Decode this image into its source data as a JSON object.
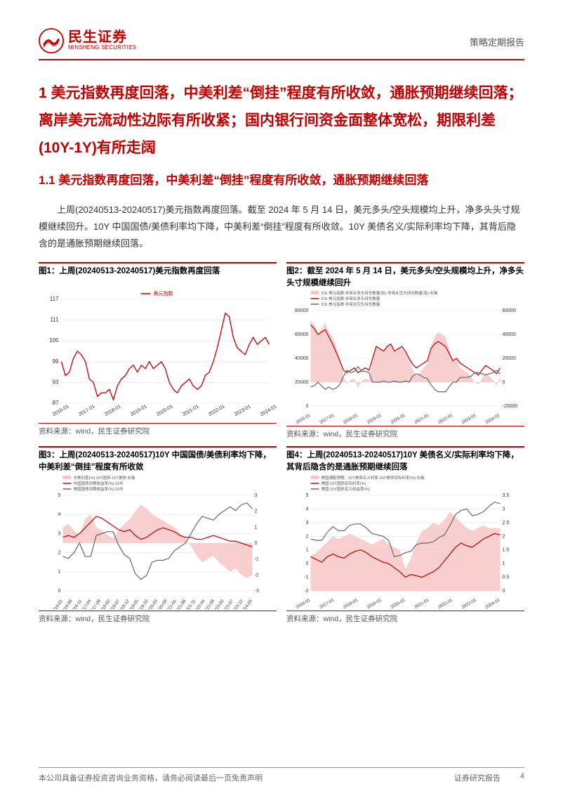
{
  "header": {
    "logo_cn": "民生证券",
    "logo_en": "MINSHENG SECURITIES",
    "report_type": "策略定期报告"
  },
  "heading1": "1 美元指数再度回落，中美利差“倒挂”程度有所收敛，通胀预期继续回落；离岸美元流动性边际有所收紧；国内银行间资金面整体宽松，期限利差(10Y-1Y)有所走阔",
  "heading2": "1.1 美元指数再度回落，中美利差“倒挂”程度有所收敛，通胀预期继续回落",
  "paragraph": "上周(20240513-20240517)美元指数再度回落。截至 2024 年 5 月 14 日，美元多头/空头规模均上升，净多头头寸规模继续回升。10Y 中国国债/美债利率均下降，中美利差“倒挂”程度有所收敛。10Y 美债名义/实际利率均下降，其背后隐含的是通胀预期继续回落。",
  "charts": {
    "chart1": {
      "title": "图1：上周(20240513-20240517)美元指数再度回落",
      "type": "line",
      "legend": [
        "美元指数"
      ],
      "series_colors": [
        "#c00000"
      ],
      "xticks": [
        "2016-01",
        "2017-01",
        "2018-01",
        "2019-01",
        "2020-01",
        "2021-01",
        "2022-01",
        "2023-01",
        "2024-01"
      ],
      "ylim": [
        87,
        117
      ],
      "yticks": [
        87,
        93,
        99,
        105,
        111,
        117
      ],
      "grid_color": "#e0e0e0",
      "background_color": "#ffffff",
      "data": [
        99,
        95,
        96,
        100,
        102,
        101,
        99,
        94,
        93,
        89,
        90,
        90,
        91,
        88,
        92,
        94,
        95,
        97,
        98,
        96,
        98,
        97,
        99,
        97,
        98,
        99,
        97,
        93,
        91,
        90,
        92,
        93,
        94,
        92,
        91,
        92,
        95,
        96,
        99,
        103,
        108,
        113,
        112,
        106,
        103,
        102,
        101,
        104,
        106,
        104,
        105,
        106,
        104
      ],
      "source": "资料来源：wind，民生证券研究院"
    },
    "chart2": {
      "title": "图2：截至 2024 年 5 月 14 日，美元多头/空头规模均上升，净多头头寸规模继续回升",
      "type": "line_area",
      "legend": [
        "ICE:美元指数:非商业多头持仓数量(张)-非商业空头持仓数量(张):右轴",
        "ICE:美元指数:非商业多头持仓数量",
        "ICE:美元指数:非商业空头持仓数量"
      ],
      "series_colors": [
        "#f4c7c5",
        "#c00000",
        "#666666"
      ],
      "xticks": [
        "2016-01",
        "2017-01",
        "2018-01",
        "2019-01",
        "2020-01",
        "2021-01",
        "2022-01",
        "2023-01",
        "2024-01"
      ],
      "ylim_left": [
        0,
        80000
      ],
      "yticks_left": [
        0,
        20000,
        40000,
        60000,
        80000
      ],
      "ylim_right": [
        -20000,
        60000
      ],
      "yticks_right": [
        -20000,
        0,
        20000,
        40000,
        60000
      ],
      "grid_color": "#e0e0e0",
      "background_color": "#ffffff",
      "area_data": [
        52000,
        48000,
        40000,
        45000,
        50000,
        42000,
        38000,
        30000,
        20000,
        5000,
        -2000,
        2000,
        3000,
        -5000,
        1000,
        3000,
        2000,
        20000,
        30000,
        28000,
        25000,
        30000,
        32000,
        25000,
        28000,
        30000,
        25000,
        20000,
        10000,
        5000,
        8000,
        12000,
        15000,
        30000,
        38000,
        42000,
        40000,
        38000,
        28000,
        18000,
        20000,
        12000,
        10000,
        8000,
        5000,
        0,
        -2000,
        3000,
        8000,
        5000,
        2000,
        -3000,
        5000
      ],
      "line1_data": [
        68000,
        65000,
        60000,
        62000,
        64000,
        58000,
        52000,
        45000,
        38000,
        30000,
        28000,
        30000,
        32000,
        28000,
        30000,
        32000,
        30000,
        40000,
        50000,
        48000,
        46000,
        50000,
        52000,
        46000,
        48000,
        50000,
        46000,
        40000,
        35000,
        32000,
        34000,
        36000,
        38000,
        48000,
        52000,
        54000,
        52000,
        50000,
        44000,
        38000,
        40000,
        36000,
        34000,
        32000,
        30000,
        28000,
        26000,
        30000,
        34000,
        32000,
        30000,
        27000,
        32000
      ],
      "line2_data": [
        16000,
        17000,
        20000,
        17000,
        14000,
        16000,
        14000,
        15000,
        18000,
        25000,
        30000,
        28000,
        29000,
        33000,
        29000,
        29000,
        28000,
        20000,
        20000,
        20000,
        21000,
        20000,
        20000,
        21000,
        20000,
        20000,
        21000,
        20000,
        25000,
        27000,
        26000,
        24000,
        23000,
        18000,
        14000,
        12000,
        12000,
        12000,
        16000,
        20000,
        20000,
        24000,
        24000,
        24000,
        25000,
        28000,
        28000,
        27000,
        26000,
        27000,
        28000,
        30000,
        27000
      ],
      "source": "资料来源：wind，民生证券研究院"
    },
    "chart3": {
      "title": "图3：上周(20240513-20240517)10Y 中国国债/美债利率均下降，中美利差“倒挂”程度有所收敛",
      "type": "line_area",
      "legend": [
        "中美利差(%):10Y国债-10Y美债:右轴",
        "中国国债到期收益率(%):10年",
        "美国国债到期收益率(%):10年"
      ],
      "series_colors": [
        "#f4c7c5",
        "#c00000",
        "#666666"
      ],
      "xticks": [
        "2016-01",
        "2016-06",
        "2016-11",
        "2017-04",
        "2017-09",
        "2018-02",
        "2018-07",
        "2018-12",
        "2019-05",
        "2019-10",
        "2020-03",
        "2020-08",
        "2021-01",
        "2021-06",
        "2021-11",
        "2022-04",
        "2022-09",
        "2023-02",
        "2023-07",
        "2023-12",
        "2024-05"
      ],
      "ylim_left": [
        0,
        5
      ],
      "yticks_left": [
        0,
        1,
        2,
        3,
        4,
        5
      ],
      "ylim_right": [
        -3,
        3
      ],
      "yticks_right": [
        -3,
        -2,
        -1,
        0,
        1,
        2,
        3
      ],
      "grid_color": "#e0e0e0",
      "background_color": "#ffffff",
      "area_data": [
        1.0,
        1.2,
        0.8,
        0.5,
        1.5,
        1.8,
        1.0,
        0.8,
        0.5,
        0.3,
        0.8,
        1.2,
        1.5,
        2.0,
        2.4,
        2.2,
        1.8,
        1.6,
        1.4,
        1.2,
        1.0,
        0.6,
        0.3,
        -0.2,
        -0.8,
        -1.2,
        -1.0,
        -0.8,
        -1.2,
        -1.5,
        -1.8,
        -1.6,
        -2.0,
        -2.2,
        -2.0
      ],
      "line1_data": [
        2.8,
        2.9,
        2.8,
        3.0,
        3.3,
        3.6,
        3.9,
        3.8,
        3.6,
        3.4,
        3.2,
        3.1,
        3.2,
        2.9,
        2.7,
        2.8,
        3.0,
        3.2,
        3.3,
        3.2,
        3.1,
        2.9,
        2.8,
        2.8,
        2.7,
        2.7,
        2.8,
        2.9,
        2.8,
        2.7,
        2.6,
        2.6,
        2.5,
        2.4,
        2.3
      ],
      "line2_data": [
        1.8,
        1.7,
        2.0,
        2.5,
        1.8,
        1.8,
        2.9,
        3.0,
        3.1,
        3.1,
        2.4,
        1.9,
        1.7,
        0.9,
        0.6,
        0.8,
        1.5,
        1.6,
        1.6,
        1.7,
        2.1,
        2.3,
        2.5,
        3.0,
        3.5,
        3.9,
        3.8,
        3.7,
        4.0,
        4.2,
        4.4,
        4.2,
        4.5,
        4.6,
        4.3
      ],
      "source": "资料来源：wind，民生证券研究院"
    },
    "chart4": {
      "title": "图4：上周(20240513-20240517)10Y 美债名义/实际利率均下降，其背后隐含的是通胀预期继续回落",
      "type": "line_area",
      "legend": [
        "美国通胀预期：10Y美债名义利率-10Y美债实际利率(%):右轴",
        "美国:10Y国债实际利率(%)",
        "美国:10Y国债名义收益率(%)"
      ],
      "series_colors": [
        "#f4c7c5",
        "#c00000",
        "#666666"
      ],
      "xticks": [
        "2016-01",
        "2017-01",
        "2018-01",
        "2019-01",
        "2020-01",
        "2021-01",
        "2022-01",
        "2023-01",
        "2024-01"
      ],
      "ylim_left": [
        -2,
        5
      ],
      "yticks_left": [
        -2,
        -1,
        0,
        1,
        2,
        3,
        4,
        5
      ],
      "ylim_right": [
        0,
        3.5
      ],
      "yticks_right": [
        0,
        0.5,
        1.0,
        1.5,
        2.0,
        2.5,
        3.0,
        3.5
      ],
      "grid_color": "#e0e0e0",
      "background_color": "#ffffff",
      "area_data": [
        1.3,
        1.4,
        1.6,
        1.8,
        2.0,
        1.9,
        2.0,
        2.1,
        2.0,
        1.9,
        1.8,
        1.7,
        1.8,
        1.9,
        1.7,
        1.6,
        1.5,
        0.8,
        1.2,
        1.8,
        2.2,
        2.3,
        2.5,
        2.4,
        2.6,
        2.9,
        2.7,
        2.5,
        2.3,
        2.2,
        2.3,
        2.4,
        2.3,
        2.3,
        2.3
      ],
      "line1_data": [
        0.5,
        0.3,
        0.1,
        0.5,
        0.7,
        0.5,
        0.4,
        0.7,
        0.9,
        1.0,
        0.8,
        0.5,
        0.3,
        0.1,
        0.0,
        -0.3,
        -0.6,
        -1.0,
        -0.8,
        -0.9,
        -1.0,
        -0.8,
        -0.6,
        -0.3,
        0.2,
        0.7,
        1.2,
        1.5,
        1.3,
        1.2,
        1.5,
        1.8,
        2.0,
        2.2,
        2.1
      ],
      "line2_data": [
        1.8,
        1.7,
        1.7,
        2.3,
        2.7,
        2.4,
        2.4,
        2.8,
        2.9,
        2.9,
        2.6,
        2.2,
        2.1,
        2.0,
        1.7,
        0.5,
        0.6,
        0.8,
        0.9,
        1.4,
        1.5,
        1.5,
        1.6,
        1.9,
        2.1,
        2.8,
        3.6,
        3.9,
        4.0,
        3.5,
        3.6,
        3.8,
        4.2,
        4.5,
        4.4
      ],
      "source": "资料来源：wind，民生证券研究院"
    }
  },
  "footer": {
    "left": "本公司具备证券投资咨询业务资格，请务必阅读最后一页免责声明",
    "right1": "证券研究报告",
    "right2": "4"
  },
  "colors": {
    "brand": "#c00000",
    "area_fill": "#f4c7c5",
    "axis": "#333333",
    "grid": "#e0e0e0",
    "line_gray": "#666666"
  }
}
